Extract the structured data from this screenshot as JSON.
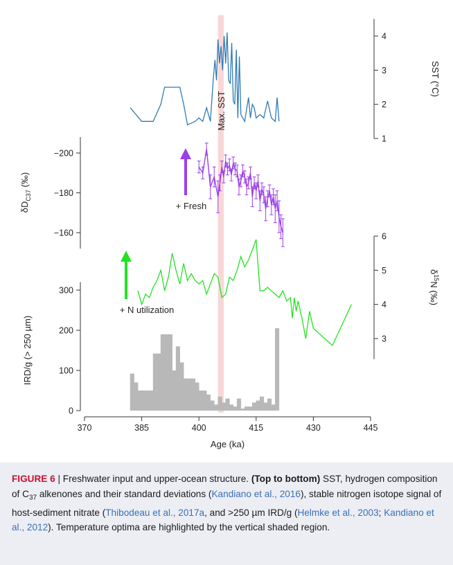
{
  "chart_data": {
    "type": "line",
    "x_axis": {
      "label": "Age (ka)",
      "range": [
        370,
        445
      ],
      "ticks": [
        370,
        385,
        400,
        415,
        430,
        445
      ]
    },
    "highlight": {
      "x_range": [
        405,
        406.5
      ],
      "label": "Max. SST",
      "color": "#f9d7d7"
    },
    "panels": [
      {
        "id": "sst",
        "type": "line",
        "ylabel": "SST (°C)",
        "ylim": [
          1,
          4.5
        ],
        "ticks": [
          1,
          2,
          3,
          4
        ],
        "color": "#2f7bb5",
        "x": [
          382,
          385,
          388,
          390,
          391,
          392,
          393,
          394,
          395,
          396,
          397,
          398,
          399,
          400,
          401,
          402,
          403,
          403.8,
          404.2,
          404.6,
          405,
          405.4,
          405.8,
          406.2,
          406.6,
          407,
          407.4,
          407.8,
          408.2,
          408.6,
          409,
          409.4,
          409.8,
          410.2,
          410.6,
          411,
          411.5,
          412,
          413,
          413.5,
          414,
          414.5,
          415,
          416,
          417,
          418,
          419,
          420,
          420.5,
          421
        ],
        "y": [
          1.9,
          1.5,
          1.5,
          2.0,
          2.5,
          2.5,
          2.5,
          2.5,
          2.5,
          2.0,
          1.4,
          1.45,
          1.5,
          1.6,
          1.5,
          1.9,
          1.5,
          2.8,
          3.3,
          2.7,
          3.9,
          3.2,
          3.7,
          3.0,
          4.0,
          3.2,
          4.1,
          2.7,
          2.6,
          3.8,
          2.1,
          2.0,
          3.6,
          1.6,
          3.4,
          1.7,
          1.6,
          1.5,
          2.2,
          1.6,
          2.0,
          1.9,
          1.6,
          1.7,
          1.6,
          2.1,
          1.6,
          1.5,
          2.2,
          1.5
        ]
      },
      {
        "id": "dd",
        "type": "line",
        "ylabel": "δD",
        "ylabel_sub": "C37",
        "ylabel_unit": "(‰)",
        "ylim": [
          -152,
          -208
        ],
        "ticks": [
          -200,
          -180,
          -160
        ],
        "color": "#9b3fea",
        "annotation": "+ Fresh",
        "x": [
          400,
          401,
          402,
          403,
          404,
          405,
          405.5,
          406,
          406.5,
          407,
          407.5,
          408,
          408.5,
          409,
          409.5,
          410,
          410.5,
          411,
          411.5,
          412,
          412.5,
          413,
          413.5,
          414,
          414.5,
          415,
          415.5,
          416,
          416.5,
          417,
          417.5,
          418,
          418.5,
          419,
          419.5,
          420,
          420.5,
          421,
          421.5,
          422
        ],
        "y": [
          -193,
          -190,
          -202,
          -183,
          -188,
          -178,
          -185,
          -193,
          -188,
          -196,
          -192,
          -194,
          -189,
          -195,
          -192,
          -191,
          -183,
          -186,
          -191,
          -188,
          -183,
          -185,
          -190,
          -178,
          -185,
          -181,
          -186,
          -176,
          -182,
          -179,
          -172,
          -177,
          -181,
          -174,
          -178,
          -172,
          -176,
          -168,
          -163,
          -160
        ],
        "err": [
          3,
          3,
          3,
          6,
          5,
          8,
          4,
          3,
          3,
          3,
          3,
          3,
          3,
          3,
          3,
          3,
          4,
          3,
          3,
          3,
          4,
          3,
          3,
          5,
          3,
          4,
          3,
          5,
          3,
          4,
          6,
          4,
          3,
          5,
          4,
          7,
          5,
          8,
          6,
          7
        ]
      },
      {
        "id": "d15n",
        "type": "line",
        "ylabel": "δ",
        "ylabel_sup": "15",
        "ylabel_unit": "N (‰)",
        "ylim": [
          2.4,
          6
        ],
        "ticks": [
          3,
          4,
          5,
          6
        ],
        "color": "#22e322",
        "annotation": "+ N utilization",
        "x": [
          384,
          385,
          386,
          387,
          388,
          389,
          390,
          391,
          392,
          393,
          394,
          395,
          396,
          397,
          398,
          399,
          400,
          401,
          402,
          403,
          404,
          405,
          406,
          407,
          408,
          409,
          410,
          411,
          412,
          413,
          414,
          415,
          416,
          417,
          418,
          419,
          420,
          421,
          422,
          423,
          424,
          424.5,
          425,
          425.5,
          426,
          427,
          428,
          429,
          430,
          433,
          435,
          440
        ],
        "y": [
          4.4,
          4.0,
          4.3,
          4.2,
          4.5,
          4.7,
          5.0,
          4.4,
          4.8,
          5.5,
          5.0,
          4.6,
          5.2,
          4.7,
          4.9,
          4.7,
          4.6,
          4.7,
          4.3,
          4.6,
          4.9,
          4.8,
          4.2,
          4.3,
          4.8,
          4.7,
          5.0,
          5.4,
          5.1,
          5.3,
          5.6,
          5.9,
          4.4,
          4.4,
          4.5,
          4.4,
          4.3,
          4.2,
          4.4,
          4.1,
          4.2,
          3.6,
          4.2,
          3.8,
          4.1,
          3.6,
          3.0,
          3.8,
          3.3,
          3.0,
          2.8,
          4.0
        ]
      },
      {
        "id": "ird",
        "type": "bar",
        "ylabel": "IRD/g (> 250 µm)",
        "ylim": [
          0,
          340
        ],
        "ticks": [
          0,
          100,
          200,
          300
        ],
        "color": "#b8b8b8",
        "x": [
          382,
          383,
          384,
          385,
          386,
          387,
          388,
          389,
          390,
          391,
          392,
          393,
          394,
          395,
          396,
          397,
          398,
          399,
          400,
          401,
          402,
          403,
          404,
          405,
          406,
          407,
          408,
          409,
          410,
          411,
          412,
          413,
          414,
          415,
          416,
          417,
          418,
          419,
          420
        ],
        "y": [
          92,
          70,
          50,
          50,
          50,
          50,
          142,
          142,
          190,
          190,
          190,
          100,
          160,
          120,
          80,
          80,
          80,
          70,
          50,
          50,
          40,
          25,
          15,
          35,
          20,
          30,
          15,
          10,
          30,
          5,
          10,
          10,
          20,
          25,
          35,
          20,
          30,
          15,
          205
        ],
        "width": 1
      }
    ]
  },
  "caption": {
    "fig_label": "FIGURE 6",
    "separator": " | ",
    "title": "Freshwater input and upper-ocean structure.",
    "order": "(Top to bottom)",
    "t1": "SST, hydrogen composition of C",
    "sub37": "37",
    "t2": " alkenones and their standard deviations (",
    "cite1": "Kandiano et al., 2016",
    "t3": "), stable nitrogen isotope signal of host-sediment nitrate (",
    "cite2": "Thibodeau et al., 2017a",
    "t4": ", and >250 µm IRD/g (",
    "cite3": "Helmke et al., 2003",
    "t5": "; ",
    "cite4": "Kandiano et al., 2012",
    "t6": "). Temperature optima are highlighted by the vertical shaded region."
  }
}
